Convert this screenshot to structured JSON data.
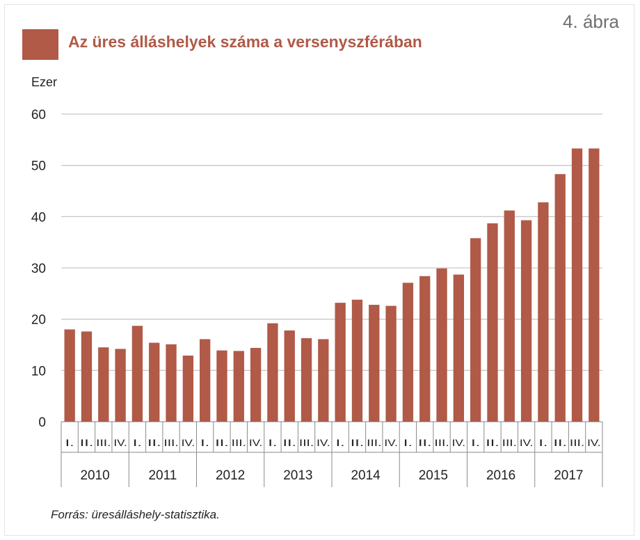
{
  "figure_label": "4. ábra",
  "source_label": "Forrás: üresálláshely-statisztika.",
  "chart_data": {
    "type": "bar",
    "title": "Az üres álláshelyek száma a versenyszférában",
    "ylabel": "Ezer",
    "xlabel": "",
    "ylim": [
      0,
      60
    ],
    "yticks": [
      "0",
      "10",
      "20",
      "30",
      "40",
      "50",
      "60"
    ],
    "grid": true,
    "bar_color": "#b05a47",
    "years": [
      "2010",
      "2011",
      "2012",
      "2013",
      "2014",
      "2015",
      "2016",
      "2017"
    ],
    "quarters": [
      "I.",
      "II.",
      "III.",
      "IV."
    ],
    "categories": [
      "2010 I.",
      "2010 II.",
      "2010 III.",
      "2010 IV.",
      "2011 I.",
      "2011 II.",
      "2011 III.",
      "2011 IV.",
      "2012 I.",
      "2012 II.",
      "2012 III.",
      "2012 IV.",
      "2013 I.",
      "2013 II.",
      "2013 III.",
      "2013 IV.",
      "2014 I.",
      "2014 II.",
      "2014 III.",
      "2014 IV.",
      "2015 I.",
      "2015 II.",
      "2015 III.",
      "2015 IV.",
      "2016 I.",
      "2016 II.",
      "2016 III.",
      "2016 IV.",
      "2017 I.",
      "2017 II.",
      "2017 III.",
      "2017 IV."
    ],
    "values": [
      18.0,
      17.6,
      14.5,
      14.2,
      18.7,
      15.4,
      15.1,
      12.9,
      16.1,
      13.9,
      13.8,
      14.4,
      19.2,
      17.8,
      16.3,
      16.1,
      23.2,
      23.8,
      22.8,
      22.6,
      27.1,
      28.4,
      29.9,
      28.7,
      35.8,
      38.7,
      41.2,
      39.3,
      42.8,
      48.3,
      53.3,
      53.3
    ]
  }
}
